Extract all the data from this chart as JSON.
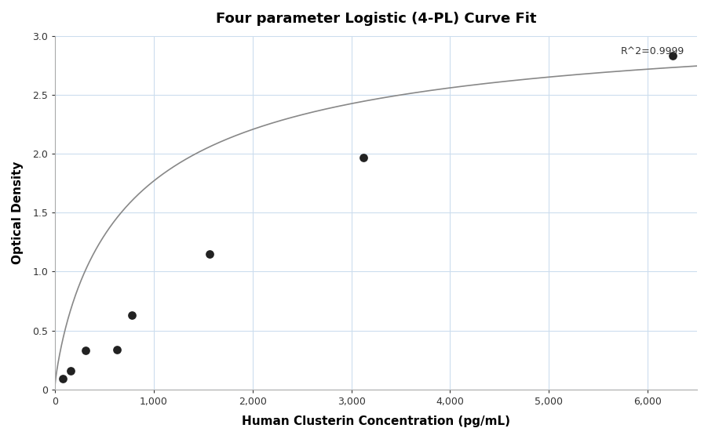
{
  "title": "Four parameter Logistic (4-PL) Curve Fit",
  "xlabel": "Human Clusterin Concentration (pg/mL)",
  "ylabel": "Optical Density",
  "r_squared_text": "R^2=0.9999",
  "data_points_x": [
    78.125,
    156.25,
    312.5,
    625,
    781.25,
    1562.5,
    3125,
    6250
  ],
  "data_points_y": [
    0.09,
    0.16,
    0.33,
    0.34,
    0.63,
    1.15,
    1.97,
    2.83
  ],
  "xlim": [
    0,
    6500
  ],
  "ylim": [
    0,
    3.0
  ],
  "xticks": [
    0,
    1000,
    2000,
    3000,
    4000,
    5000,
    6000
  ],
  "yticks": [
    0,
    0.5,
    1.0,
    1.5,
    2.0,
    2.5,
    3.0
  ],
  "curve_color": "#888888",
  "dot_color": "#222222",
  "background_color": "#ffffff",
  "grid_color": "#ccddee",
  "4pl_A": 0.04,
  "4pl_B": 0.85,
  "4pl_C": 800,
  "4pl_D": 3.2
}
